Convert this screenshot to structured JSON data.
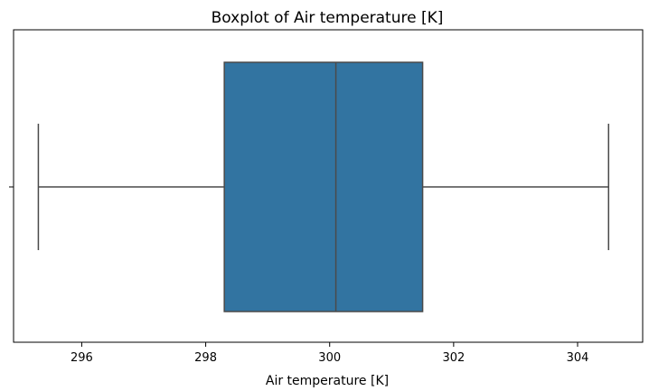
{
  "chart_data": {
    "type": "box",
    "title": "Boxplot of Air temperature [K]",
    "xlabel": "Air temperature [K]",
    "ylabel": "",
    "orientation": "horizontal",
    "xlim": [
      294.9,
      305.05
    ],
    "xticks": [
      296,
      298,
      300,
      302,
      304
    ],
    "xtick_labels": [
      "296",
      "298",
      "300",
      "302",
      "304"
    ],
    "grid": false,
    "box": {
      "whisker_low": 295.3,
      "q1": 298.3,
      "median": 300.1,
      "q3": 301.5,
      "whisker_high": 304.5
    },
    "colors": {
      "box_fill": "#3274a1",
      "lines": "#4a4a4a",
      "frame": "#000000"
    }
  }
}
